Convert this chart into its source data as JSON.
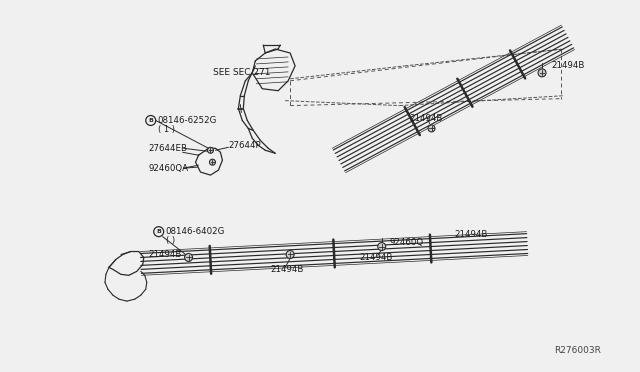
{
  "bg_color": "#f0f0f0",
  "line_color": "#2a2a2a",
  "text_color": "#1a1a1a",
  "fig_width": 6.4,
  "fig_height": 3.72,
  "diagram_ref": "R276003R",
  "labels": {
    "see_sec": "SEE SEC.271",
    "part1": "B 08146-6252G",
    "part1b": "( 1 )",
    "part2a": "27644EB",
    "part2b": "27644P",
    "part3": "92460QA",
    "part4a": "21494B",
    "part4b": "21494B",
    "part4c": "21494B",
    "part4d": "21494B",
    "part5": "B 08146-6402G",
    "part5b": "( )",
    "part6": "92460Q",
    "part6b": "21494B",
    "part7": "21494B"
  }
}
